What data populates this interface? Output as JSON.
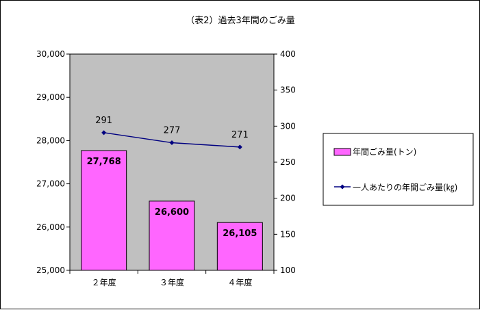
{
  "chart_data": {
    "type": "bar+line",
    "title": "（表2）過去3年間のごみ量",
    "categories": [
      "２年度",
      "３年度",
      "４年度"
    ],
    "series": [
      {
        "name": "年間ごみ量(トン)",
        "type": "bar",
        "axis": "left",
        "values": [
          27768,
          26600,
          26105
        ],
        "labels": [
          "27,768",
          "26,600",
          "26,105"
        ],
        "color": "#ff66ff"
      },
      {
        "name": "一人あたりの年間ごみ量(㎏)",
        "type": "line",
        "axis": "right",
        "values": [
          291,
          277,
          271
        ],
        "labels": [
          "291",
          "277",
          "271"
        ],
        "color": "#000080"
      }
    ],
    "y_left": {
      "ylim": [
        25000,
        30000
      ],
      "ticks": [
        25000,
        26000,
        27000,
        28000,
        29000,
        30000
      ],
      "tick_labels": [
        "25,000",
        "26,000",
        "27,000",
        "28,000",
        "29,000",
        "30,000"
      ]
    },
    "y_right": {
      "ylim": [
        100,
        400
      ],
      "ticks": [
        100,
        150,
        200,
        250,
        300,
        350,
        400
      ],
      "tick_labels": [
        "100",
        "150",
        "200",
        "250",
        "300",
        "350",
        "400"
      ]
    },
    "grid": false,
    "legend_position": "right",
    "plot_background": "#c0c0c0"
  }
}
